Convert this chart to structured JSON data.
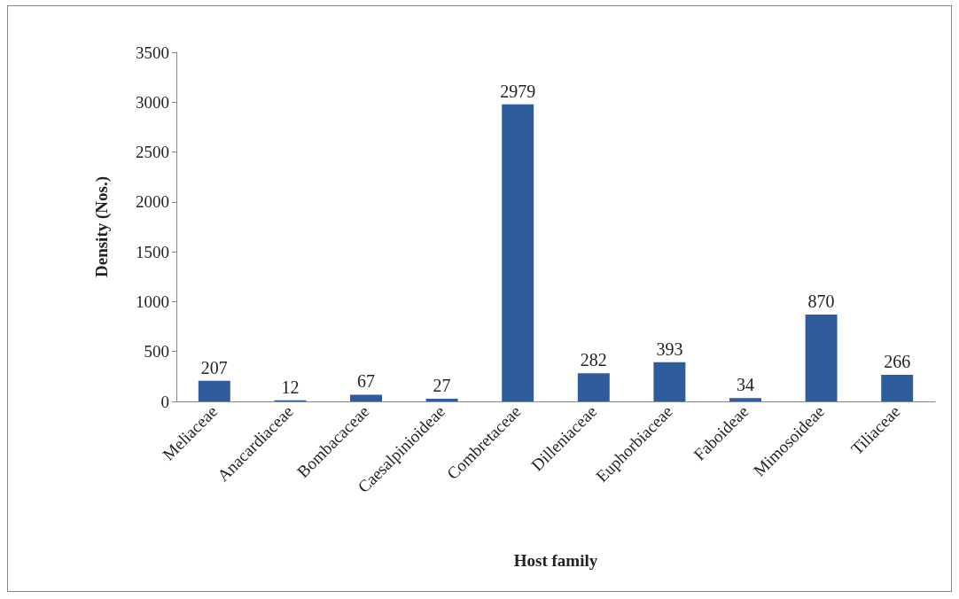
{
  "chart_data": {
    "type": "bar",
    "xlabel": "Host family",
    "ylabel": "Density (Nos.)",
    "categories": [
      "Meliaceae",
      "Anacardiaceae",
      "Bombacaceae",
      "Caesalpinioideae",
      "Combretaceae",
      "Dilleniaceae",
      "Euphorbiaceae",
      "Faboideae",
      "Mimosoideae",
      "Tiliaceae"
    ],
    "values": [
      207,
      12,
      67,
      27,
      2979,
      282,
      393,
      34,
      870,
      266
    ],
    "color": "#2f5d9b",
    "ylim": [
      0,
      3500
    ],
    "yticks": [
      0,
      500,
      1000,
      1500,
      2000,
      2500,
      3000,
      3500
    ],
    "data_labels": true,
    "grid": false
  }
}
